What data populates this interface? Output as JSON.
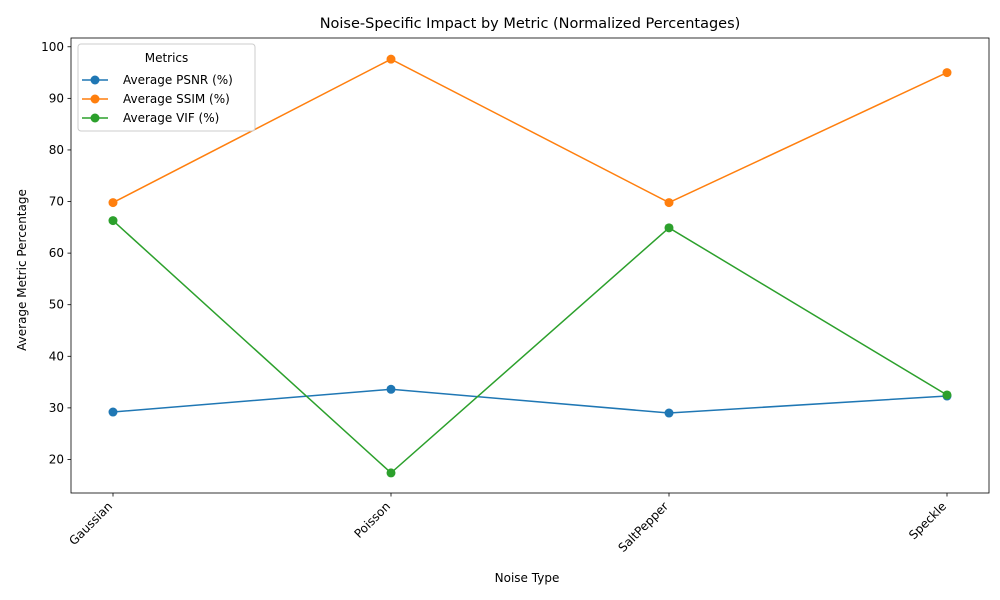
{
  "chart_data": {
    "type": "line",
    "title": "Noise-Specific Impact by Metric (Normalized Percentages)",
    "xlabel": "Noise Type",
    "ylabel": "Average Metric Percentage",
    "categories": [
      "Gaussian",
      "Poisson",
      "SaltPepper",
      "Speckle"
    ],
    "series": [
      {
        "name": "Average PSNR (%)",
        "color": "#1f77b4",
        "values": [
          29.2,
          33.6,
          29.0,
          32.3
        ]
      },
      {
        "name": "Average SSIM (%)",
        "color": "#ff7f0e",
        "values": [
          69.8,
          97.6,
          69.8,
          95.0
        ]
      },
      {
        "name": "Average VIF (%)",
        "color": "#2ca02c",
        "values": [
          66.3,
          17.4,
          64.9,
          32.5
        ]
      }
    ],
    "ylim": [
      13.5,
      101.7
    ],
    "yticks": [
      20,
      30,
      40,
      50,
      60,
      70,
      80,
      90,
      100
    ],
    "legend_title": "Metrics",
    "legend_position": "top-left",
    "grid": false
  }
}
